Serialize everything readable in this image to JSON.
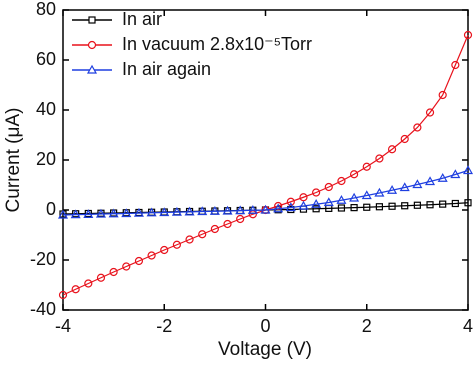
{
  "chart_data": {
    "type": "line",
    "xlabel": "Voltage (V)",
    "ylabel": "Current (μA)",
    "x": [
      -4,
      -3.75,
      -3.5,
      -3.25,
      -3,
      -2.75,
      -2.5,
      -2.25,
      -2,
      -1.75,
      -1.5,
      -1.25,
      -1,
      -0.75,
      -0.5,
      -0.25,
      0,
      0.25,
      0.5,
      0.75,
      1,
      1.25,
      1.5,
      1.75,
      2,
      2.25,
      2.5,
      2.75,
      3,
      3.25,
      3.5,
      3.75,
      4
    ],
    "series": [
      {
        "name": "In air",
        "color": "#000000",
        "marker": "square",
        "values": [
          -1.6,
          -1.5,
          -1.4,
          -1.3,
          -1.2,
          -1.1,
          -1,
          -0.9,
          -0.8,
          -0.7,
          -0.6,
          -0.5,
          -0.4,
          -0.3,
          -0.2,
          -0.1,
          0,
          0.1,
          0.2,
          0.35,
          0.5,
          0.65,
          0.8,
          0.95,
          1.1,
          1.3,
          1.5,
          1.7,
          1.9,
          2.1,
          2.35,
          2.6,
          2.9
        ]
      },
      {
        "name": "In vacuum 2.8x10⁻⁵Torr",
        "color": "#e8121c",
        "marker": "circle",
        "values": [
          -34,
          -31.7,
          -29.4,
          -27.1,
          -24.8,
          -22.6,
          -20.4,
          -18.2,
          -16,
          -13.9,
          -11.8,
          -9.7,
          -7.6,
          -5.6,
          -3.6,
          -1.7,
          0,
          1.6,
          3.3,
          5.1,
          7,
          9.2,
          11.6,
          14.3,
          17.3,
          20.6,
          24.3,
          28.4,
          33,
          39,
          46,
          58,
          70
        ]
      },
      {
        "name": "In air again",
        "color": "#1f3fe0",
        "marker": "triangle",
        "values": [
          -2,
          -1.85,
          -1.75,
          -1.6,
          -1.5,
          -1.4,
          -1.25,
          -1.1,
          -1,
          -0.85,
          -0.75,
          -0.6,
          -0.5,
          -0.4,
          -0.25,
          -0.1,
          0,
          0.5,
          1,
          1.6,
          2.3,
          3,
          3.9,
          4.8,
          5.8,
          6.8,
          7.9,
          9,
          10.2,
          11.4,
          12.7,
          14.2,
          15.8
        ]
      }
    ],
    "xlim": [
      -4,
      4
    ],
    "xticks": [
      -4,
      -2,
      0,
      2,
      4
    ],
    "ylim": [
      -40,
      80
    ],
    "yticks": [
      -40,
      -20,
      0,
      20,
      40,
      60,
      80
    ],
    "legend": "upper-left"
  }
}
